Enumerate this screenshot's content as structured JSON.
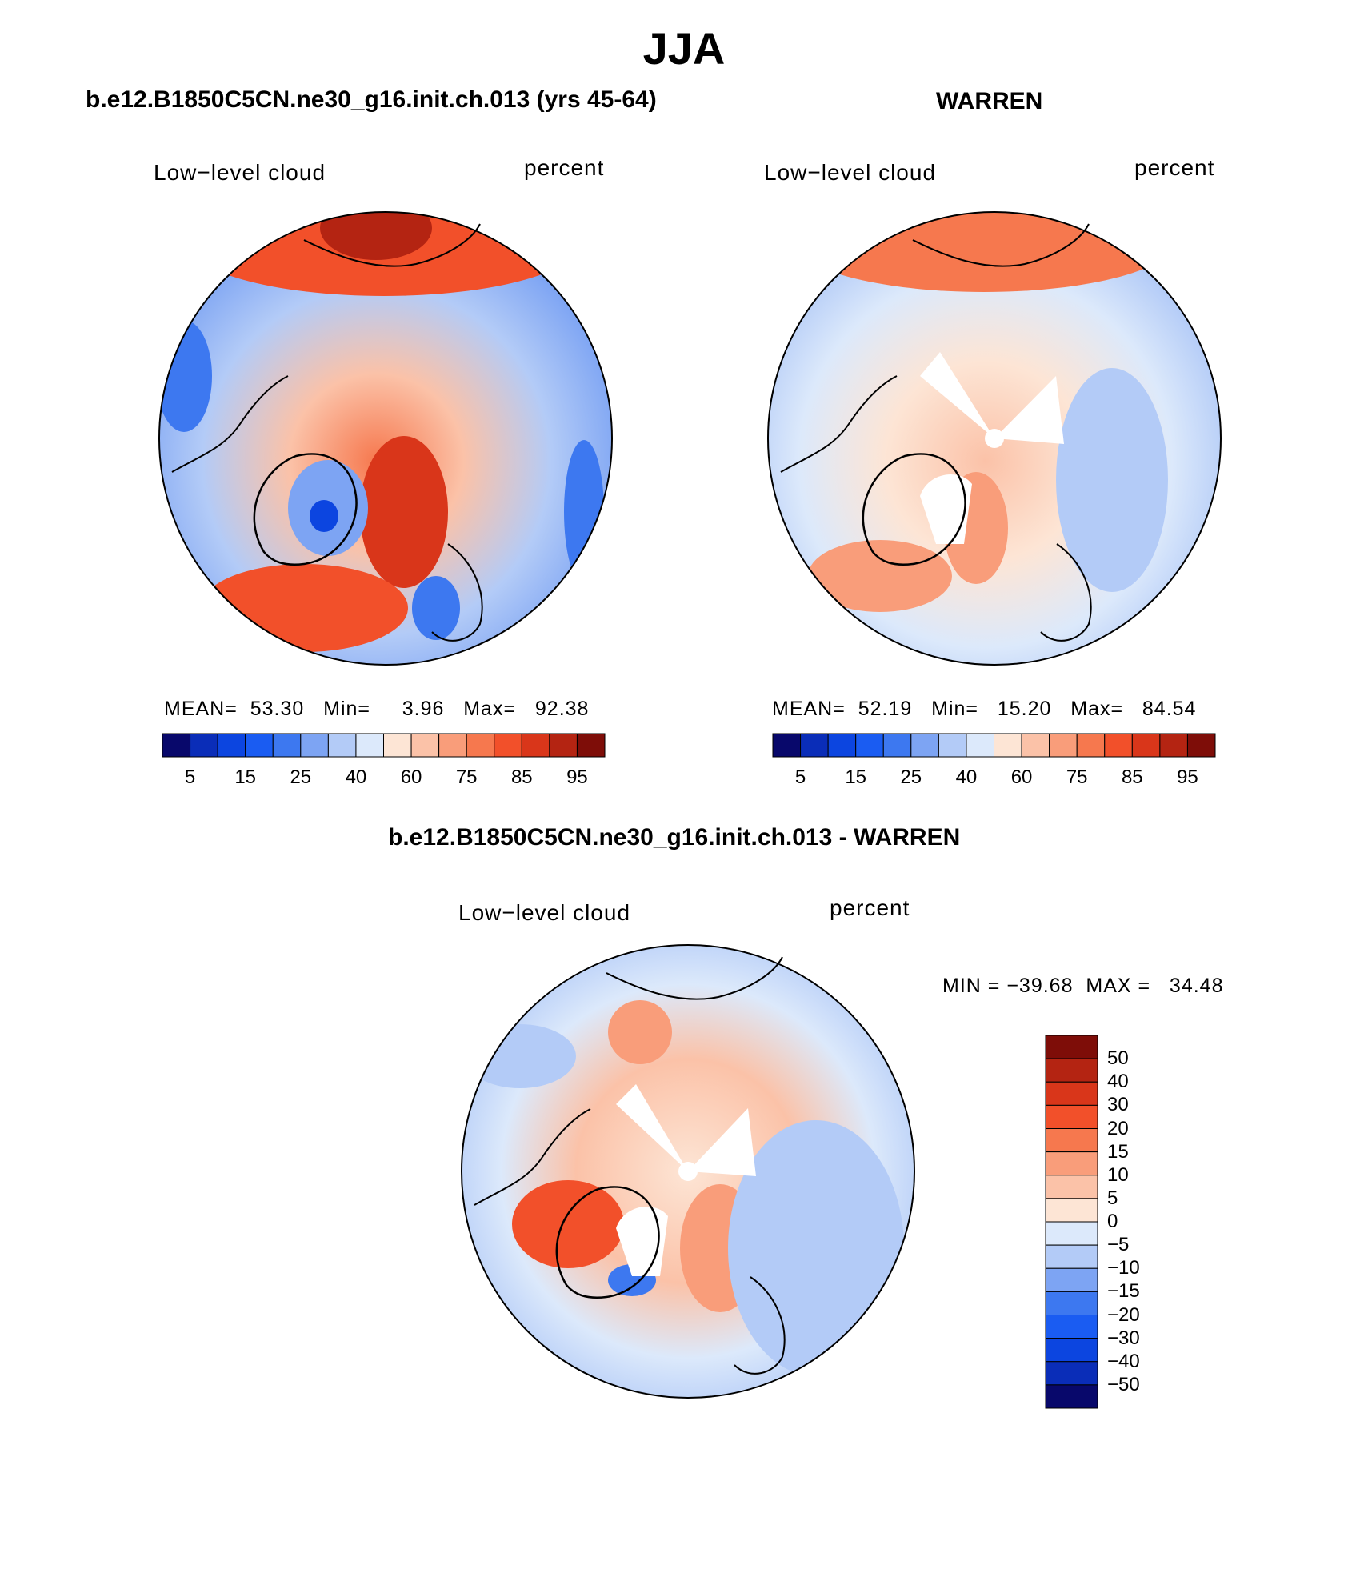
{
  "title": "JJA",
  "panels": [
    {
      "title": "b.e12.B1850C5CN.ne30_g16.init.ch.013 (yrs 45-64)",
      "left_label": "Low−level cloud",
      "right_label": "percent",
      "stats": "MEAN=  53.30   Min=     3.96   Max=   92.38",
      "colorbar_ticks": [
        "5",
        "15",
        "25",
        "40",
        "60",
        "75",
        "85",
        "95"
      ],
      "colorbar_colors": [
        "#08086b",
        "#0a2db8",
        "#0c45e0",
        "#1a5cf2",
        "#3d78f0",
        "#7da4f3",
        "#b3cbf7",
        "#dce9fb",
        "#fde5d5",
        "#fbc2a8",
        "#f99d7a",
        "#f6784e",
        "#f2502a",
        "#d9361a",
        "#b42412",
        "#7e0d08"
      ]
    },
    {
      "title": "WARREN",
      "left_label": "Low−level cloud",
      "right_label": "percent",
      "stats": "MEAN=  52.19   Min=   15.20   Max=   84.54",
      "colorbar_ticks": [
        "5",
        "15",
        "25",
        "40",
        "60",
        "75",
        "85",
        "95"
      ],
      "colorbar_colors": [
        "#08086b",
        "#0a2db8",
        "#0c45e0",
        "#1a5cf2",
        "#3d78f0",
        "#7da4f3",
        "#b3cbf7",
        "#dce9fb",
        "#fde5d5",
        "#fbc2a8",
        "#f99d7a",
        "#f6784e",
        "#f2502a",
        "#d9361a",
        "#b42412",
        "#7e0d08"
      ]
    },
    {
      "title": "b.e12.B1850C5CN.ne30_g16.init.ch.013 - WARREN",
      "left_label": "Low−level cloud",
      "right_label": "percent",
      "stats": "MIN = −39.68  MAX =   34.48",
      "colorbar_ticks": [
        "50",
        "40",
        "30",
        "20",
        "15",
        "10",
        "5",
        "0",
        "−5",
        "−10",
        "−15",
        "−20",
        "−30",
        "−40",
        "−50"
      ],
      "colorbar_colors": [
        "#7e0d08",
        "#b42412",
        "#d9361a",
        "#f2502a",
        "#f6784e",
        "#f99d7a",
        "#fbc2a8",
        "#fde5d5",
        "#dce9fb",
        "#b3cbf7",
        "#7da4f3",
        "#3d78f0",
        "#1a5cf2",
        "#0c45e0",
        "#0a2db8",
        "#08086b"
      ]
    }
  ]
}
